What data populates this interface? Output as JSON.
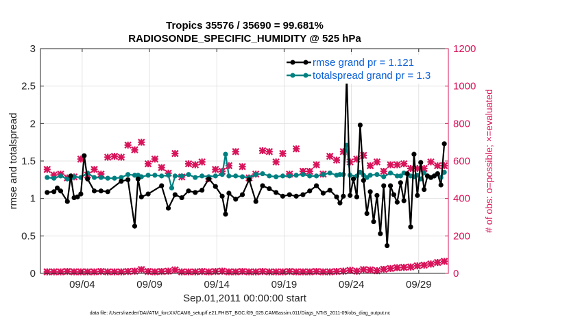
{
  "chart_data": {
    "type": "line",
    "title_line1": "Tropics 35576 / 35690 = 99.681%",
    "title_line2": "RADIOSONDE_SPECIFIC_HUMIDITY @ 525 hPa",
    "xlabel": "Sep.01,2011 00:00:00 start",
    "ylabel_left": "rmse and totalspread",
    "ylabel_right": "# of obs: o=possible; ×=evaluated",
    "footer": "data file: /Users/raeder/DAI/ATM_forcXX/CAM6_setup/f.e21.FHIST_BGC.f09_025.CAM6assim.011/Diags_NTrS_2011-09/obs_diag_output.nc",
    "x_range": [
      0.5,
      30.8
    ],
    "ylim_left": [
      0,
      3
    ],
    "ylim_right": [
      0,
      1200
    ],
    "x_ticks": [
      3.6,
      8.6,
      13.6,
      18.6,
      23.6,
      28.6
    ],
    "x_tick_labels": [
      "09/04",
      "09/09",
      "09/14",
      "09/19",
      "09/24",
      "09/29"
    ],
    "y_ticks_left": [
      0,
      0.5,
      1,
      1.5,
      2,
      2.5,
      3
    ],
    "y_tick_labels_left": [
      "0",
      "0.5",
      "1",
      "1.5",
      "2",
      "2.5",
      "3"
    ],
    "y_ticks_right": [
      0,
      200,
      400,
      600,
      800,
      1000,
      1200
    ],
    "y_tick_labels_right": [
      "0",
      "200",
      "400",
      "600",
      "800",
      "1000",
      "1200"
    ],
    "legend_position": "top-right",
    "colors": {
      "rmse": "#000000",
      "spread": "#008080",
      "obs": "#d8135a",
      "grid": "#dddddd",
      "axis": "#262626"
    },
    "series": [
      {
        "name": "rmse grand pr = 1.121",
        "x": [
          1,
          1.5,
          1.75,
          2,
          2.5,
          2.75,
          3,
          3.25,
          3.5,
          3.75,
          4,
          4.5,
          5,
          5.5,
          6.5,
          7,
          7.5,
          7.75,
          8,
          8.5,
          9.5,
          10,
          10.5,
          11,
          11.5,
          12,
          12.5,
          13,
          13.5,
          14,
          14.25,
          14.5,
          15,
          15.5,
          16,
          16.5,
          17,
          17.5,
          18,
          18.5,
          19,
          19.5,
          20,
          20.5,
          21,
          21.5,
          22,
          22.5,
          22.75,
          23,
          23.25,
          23.5,
          23.75,
          24,
          24.25,
          24.5,
          24.75,
          25,
          25.25,
          25.5,
          25.75,
          26,
          26.25,
          26.5,
          26.75,
          27,
          27.25,
          27.5,
          27.75,
          28,
          28.25,
          28.5,
          28.75,
          29,
          29.25,
          29.5,
          29.75,
          30,
          30.25,
          30.5
        ],
        "values": [
          1.08,
          1.09,
          1.14,
          1.1,
          0.96,
          1.3,
          1.01,
          1.02,
          1.06,
          1.57,
          1.26,
          1.1,
          1.1,
          1.09,
          1.23,
          1.25,
          0.63,
          1.26,
          1.02,
          1.06,
          1.17,
          0.87,
          1.05,
          1.01,
          1.1,
          1.08,
          1.11,
          1.26,
          1.16,
          1.03,
          0.79,
          1.07,
          0.99,
          1.05,
          1.25,
          0.96,
          1.17,
          1.13,
          1.08,
          1.03,
          1.05,
          1.03,
          1.05,
          1.1,
          1.17,
          1.07,
          1.11,
          1.02,
          0.94,
          1.03,
          2.66,
          1.04,
          1.26,
          1.02,
          1.98,
          1.24,
          0.8,
          1.09,
          0.69,
          1.04,
          0.53,
          1.17,
          0.37,
          1.17,
          1.05,
          0.95,
          1.21,
          0.97,
          1.33,
          0.62,
          1.59,
          1.04,
          1.48,
          1.12,
          1.3,
          1.28,
          1.3,
          1.33,
          1.18,
          1.73
        ]
      },
      {
        "name": "totalspread grand pr = 1.3",
        "x": [
          1,
          1.5,
          2,
          2.5,
          2.75,
          3,
          3.5,
          4,
          4.5,
          5,
          5.5,
          6,
          6.5,
          7,
          7.5,
          7.75,
          8,
          8.5,
          9,
          9.5,
          10,
          10.25,
          10.5,
          11,
          11.5,
          12,
          12.5,
          13,
          13.5,
          14,
          14.25,
          14.5,
          15,
          15.5,
          16,
          16.5,
          17,
          17.5,
          18,
          18.5,
          19,
          19.5,
          20,
          20.5,
          21,
          21.5,
          22,
          22.5,
          22.75,
          23,
          23.25,
          23.5,
          24,
          24.25,
          24.5,
          24.75,
          25,
          25.5,
          26,
          26.5,
          27,
          27.25,
          27.5,
          28,
          28.25,
          28.5,
          28.75,
          29,
          29.25,
          29.5,
          29.75,
          30,
          30.25,
          30.5
        ],
        "values": [
          1.28,
          1.27,
          1.3,
          1.26,
          1.27,
          1.29,
          1.28,
          1.34,
          1.28,
          1.28,
          1.27,
          1.27,
          1.28,
          1.32,
          1.31,
          1.31,
          1.29,
          1.31,
          1.31,
          1.3,
          1.31,
          1.14,
          1.3,
          1.3,
          1.32,
          1.28,
          1.3,
          1.29,
          1.3,
          1.32,
          1.59,
          1.3,
          1.3,
          1.29,
          1.28,
          1.32,
          1.33,
          1.3,
          1.29,
          1.3,
          1.3,
          1.31,
          1.32,
          1.3,
          1.3,
          1.32,
          1.34,
          1.31,
          1.32,
          1.32,
          1.71,
          1.31,
          1.3,
          1.35,
          1.31,
          1.28,
          1.31,
          1.32,
          1.29,
          1.34,
          1.3,
          1.3,
          1.34,
          1.3,
          1.29,
          1.31,
          1.26,
          1.34,
          1.3,
          1.28,
          1.3,
          1.33,
          1.28,
          1.35
        ]
      },
      {
        "name": "obs possible (o)",
        "axis": "right",
        "x": [
          1,
          1.5,
          2,
          2.5,
          3,
          3.5,
          4,
          4.5,
          5,
          5.5,
          6,
          6.5,
          7,
          7.5,
          8,
          8.5,
          9,
          9.5,
          10,
          10.5,
          11,
          11.5,
          12,
          12.5,
          13,
          13.5,
          14,
          14.5,
          15,
          15.5,
          16,
          16.5,
          17,
          17.5,
          18,
          18.5,
          19,
          19.5,
          20,
          20.5,
          21,
          21.5,
          22,
          22.5,
          23,
          23.5,
          24,
          24.5,
          25,
          25.5,
          26,
          26.5,
          27,
          27.5,
          28,
          28.5,
          29,
          29.5,
          30,
          30.5
        ],
        "values": [
          8,
          8,
          8,
          10,
          8,
          8,
          8,
          8,
          10,
          8,
          8,
          8,
          10,
          12,
          20,
          10,
          8,
          10,
          12,
          18,
          8,
          8,
          8,
          10,
          8,
          10,
          12,
          8,
          8,
          10,
          8,
          8,
          10,
          8,
          8,
          8,
          10,
          8,
          8,
          8,
          10,
          8,
          8,
          10,
          12,
          16,
          12,
          20,
          18,
          14,
          22,
          26,
          30,
          32,
          34,
          40,
          44,
          50,
          58,
          64
        ]
      },
      {
        "name": "obs evaluated (×)",
        "axis": "right",
        "x": [
          1,
          1.5,
          2,
          2.5,
          3,
          3.5,
          4,
          4.5,
          5,
          5.5,
          6,
          6.5,
          7,
          7.5,
          8,
          8.5,
          9,
          9.5,
          10,
          10.5,
          11,
          11.5,
          12,
          12.5,
          13,
          13.5,
          14,
          14.5,
          15,
          15.5,
          16,
          16.5,
          17,
          17.5,
          18,
          18.5,
          19,
          19.5,
          20,
          20.5,
          21,
          21.5,
          22,
          22.5,
          23,
          23.5,
          24,
          24.5,
          25,
          25.5,
          26,
          26.5,
          27,
          27.5,
          28,
          28.5,
          29,
          29.5,
          30,
          30.5
        ],
        "values": [
          8,
          8,
          8,
          10,
          8,
          8,
          8,
          8,
          10,
          8,
          8,
          8,
          10,
          12,
          20,
          10,
          8,
          10,
          12,
          18,
          8,
          8,
          8,
          10,
          8,
          10,
          12,
          8,
          8,
          10,
          8,
          8,
          10,
          8,
          8,
          8,
          10,
          8,
          8,
          8,
          10,
          8,
          8,
          10,
          12,
          16,
          12,
          20,
          18,
          14,
          22,
          26,
          30,
          32,
          34,
          40,
          44,
          50,
          58,
          64
        ]
      },
      {
        "name": "obs possible (o) upper",
        "axis": "right",
        "x": [
          1,
          1.5,
          2,
          2.5,
          3,
          3.5,
          4,
          4.5,
          5,
          5.5,
          6,
          6.5,
          7,
          7.5,
          8,
          8.5,
          9,
          9.5,
          10,
          10.5,
          11,
          11.5,
          12,
          12.5,
          13,
          13.5,
          14,
          14.5,
          15,
          15.5,
          16,
          16.5,
          17,
          17.5,
          18,
          18.5,
          19,
          19.5,
          20,
          20.5,
          21,
          21.5,
          22,
          22.5,
          23,
          23.5,
          24,
          24.5,
          25,
          25.5,
          26,
          26.5,
          27,
          27.5,
          28,
          28.5,
          29,
          29.5,
          30,
          30.5
        ],
        "values": [
          555,
          525,
          530,
          510,
          515,
          610,
          525,
          555,
          530,
          620,
          625,
          620,
          685,
          660,
          700,
          585,
          610,
          565,
          535,
          640,
          515,
          585,
          580,
          595,
          505,
          555,
          545,
          575,
          650,
          570,
          510,
          530,
          655,
          650,
          595,
          640,
          530,
          665,
          545,
          545,
          580,
          530,
          625,
          605,
          650,
          595,
          610,
          630,
          575,
          595,
          545,
          580,
          580,
          585,
          560,
          560,
          560,
          595,
          575,
          575
        ]
      }
    ],
    "legend": [
      {
        "label": "rmse grand pr = 1.121",
        "color": "#000000"
      },
      {
        "label": "totalspread grand pr = 1.3",
        "color": "#008080"
      }
    ]
  }
}
